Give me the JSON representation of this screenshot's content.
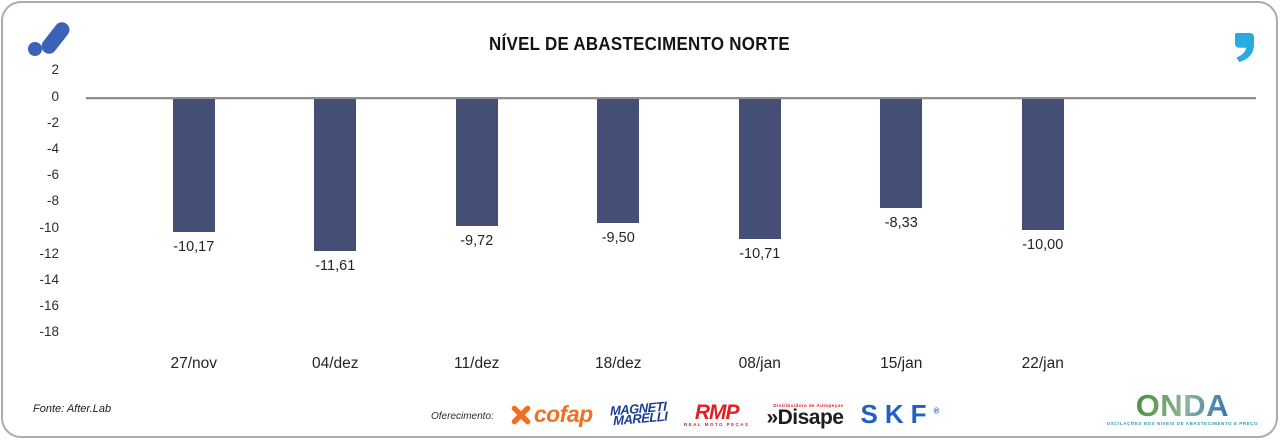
{
  "header": {
    "title": "NÍVEL DE ABASTECIMENTO NORTE",
    "afterlab_icon_color": "#3C62B8",
    "quote_icon_color": "#29ABE2"
  },
  "chart_data": {
    "type": "bar",
    "title": "NÍVEL DE ABASTECIMENTO NORTE",
    "categories": [
      "27/nov",
      "04/dez",
      "11/dez",
      "18/dez",
      "08/jan",
      "15/jan",
      "22/jan"
    ],
    "values": [
      -10.17,
      -11.61,
      -9.72,
      -9.5,
      -10.71,
      -8.33,
      -10.0
    ],
    "value_labels": [
      "-10,17",
      "-11,61",
      "-9,72",
      "-9,50",
      "-10,71",
      "-8,33",
      "-10,00"
    ],
    "yticks": [
      2,
      0,
      -2,
      -4,
      -6,
      -8,
      -10,
      -12,
      -14,
      -16,
      -18
    ],
    "ylim": [
      -18,
      2
    ],
    "grid": false,
    "legend": false,
    "bar_color": "#454E74",
    "axis_color": "#8F8F8F"
  },
  "footer": {
    "source": "Fonte: After.Lab",
    "sponsor_label": "Oferecimento:",
    "sponsors": {
      "cofap": {
        "name": "cofap",
        "color": "#F26F21",
        "icon": "cofap-x-icon"
      },
      "magneti": {
        "line1": "MAGNETI",
        "line2": "MARELLI",
        "color": "#1A3D94"
      },
      "rmp": {
        "name": "RMP",
        "tagline": "REAL MOTO PEÇAS",
        "color": "#E31E24"
      },
      "disape": {
        "name": "»Disape",
        "tagline": "Distribuidora de Autopeças",
        "color": "#1D1D1D",
        "accent": "#E31E24"
      },
      "skf": {
        "name": "SKF",
        "reg": "®",
        "color": "#2160C8"
      }
    },
    "onda": {
      "name": "ONDA",
      "tagline": "OSCILAÇÕES NOS NÍVEIS DE ABASTECIMENTO E PREÇO"
    }
  }
}
